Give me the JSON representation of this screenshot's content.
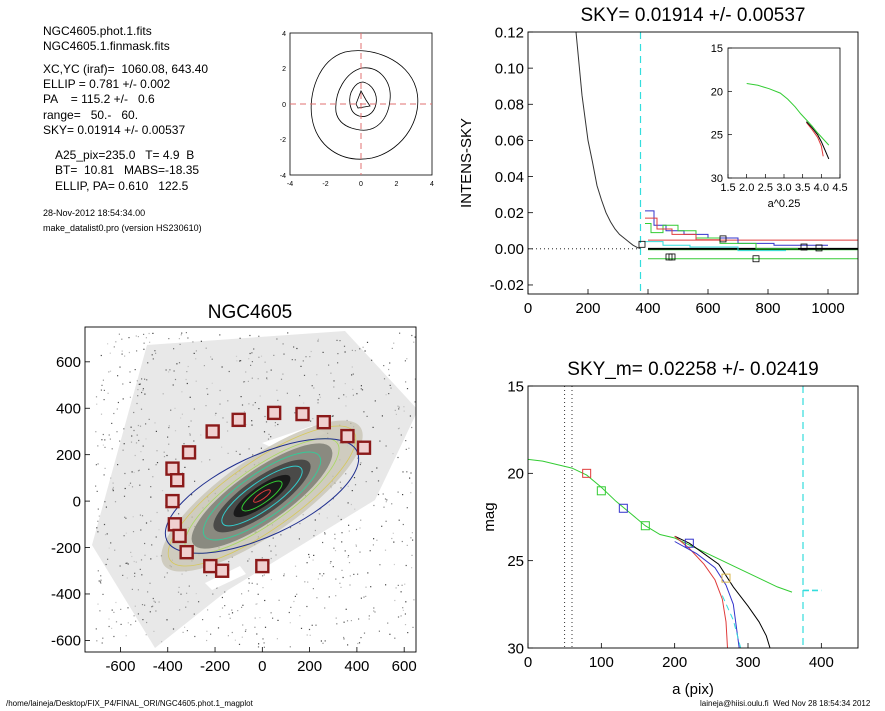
{
  "info": {
    "file_lines": [
      "NGC4605.phot.1.fits",
      "NGC4605.1.finmask.fits"
    ],
    "param_lines": [
      "XC,YC (iraf)=  1060.08, 643.40",
      "ELLIP = 0.781 +/- 0.002",
      "PA    = 115.2 +/-   0.6",
      "range=   50.-   60.",
      "SKY= 0.01914 +/- 0.00537"
    ],
    "extra_lines": [
      "A25_pix=235.0   T= 4.9  B",
      "BT=  10.81   MABS=-18.35",
      "ELLIP, PA= 0.610   122.5"
    ],
    "date_line": "28-Nov-2012 18:54:34.00",
    "prog_line": "make_datalist0.pro (version HS230610)"
  },
  "footer": {
    "left": "/home/laineja/Desktop/FIX_P4/FINAL_ORI/NGC4605.phot.1_magplot",
    "right": "laineja@hiisi.oulu.fi  Wed Nov 28 18:54:34 2012"
  },
  "colors": {
    "red": "#e03c3c",
    "green": "#33cc33",
    "blue": "#3333cc",
    "cyan": "#33dddd",
    "orange": "#d9b64a",
    "box": "#8b1a1a"
  },
  "chart_data": [
    {
      "id": "center-contour",
      "type": "contour",
      "xlim": [
        -4,
        4
      ],
      "ylim": [
        -4,
        4
      ],
      "xticks": [
        "-4",
        "-2",
        "0",
        "2",
        "4"
      ],
      "yticks": [
        "4",
        "2",
        "0",
        "-2",
        "-4"
      ],
      "crosshair": [
        0,
        0
      ]
    },
    {
      "id": "sky-plot",
      "type": "line",
      "title": "SKY= 0.01914 +/- 0.00537",
      "ylabel": "INTENS-SKY",
      "xlim": [
        0,
        1100
      ],
      "ylim": [
        -0.025,
        0.12
      ],
      "xticks": [
        "0",
        "200",
        "400",
        "600",
        "800",
        "1000"
      ],
      "yticks": [
        "0.12",
        "0.10",
        "0.08",
        "0.06",
        "0.04",
        "0.02",
        "0.00",
        "-0.02"
      ],
      "sky_radius": 375,
      "profile": {
        "x": [
          160,
          180,
          200,
          215,
          230,
          245,
          260,
          275,
          290,
          305,
          320,
          335,
          350,
          365,
          375
        ],
        "y": [
          0.12,
          0.085,
          0.06,
          0.048,
          0.035,
          0.027,
          0.02,
          0.015,
          0.011,
          0.008,
          0.006,
          0.004,
          0.002,
          0.0007,
          0.0002
        ]
      },
      "levels": [
        {
          "color": "red",
          "y": 0.0048
        },
        {
          "color": "green",
          "y": -0.0055
        },
        {
          "color": "green",
          "y": -0.0005
        },
        {
          "color": "black",
          "y": 0.0
        }
      ],
      "squares": {
        "x": [
          380,
          470,
          480,
          650,
          760,
          920,
          970
        ],
        "y": [
          0.0025,
          -0.0045,
          -0.0045,
          0.0055,
          -0.0055,
          0.001,
          0.0005
        ]
      },
      "inset": {
        "xlabel": "a^0.25",
        "xlim": [
          1.5,
          4.5
        ],
        "ylim": [
          15,
          30
        ],
        "xticks": [
          "1.5",
          "2.0",
          "2.5",
          "3.0",
          "3.5",
          "4.0",
          "4.5"
        ],
        "yticks": [
          "15",
          "20",
          "25",
          "30"
        ],
        "green": {
          "x": [
            2.0,
            2.3,
            2.6,
            2.9,
            3.1,
            3.3,
            3.45,
            3.6,
            3.75,
            3.9,
            4.05,
            4.2
          ],
          "y": [
            19.1,
            19.3,
            19.7,
            20.2,
            20.9,
            21.8,
            22.6,
            23.3,
            24.0,
            24.8,
            25.5,
            26.2
          ]
        },
        "red": {
          "x": [
            3.6,
            3.75,
            3.9,
            4.0,
            4.05
          ],
          "y": [
            23.6,
            24.4,
            25.3,
            26.3,
            27.5
          ]
        },
        "black": {
          "x": [
            3.6,
            3.75,
            3.9,
            4.0,
            4.1,
            4.2
          ],
          "y": [
            23.5,
            24.2,
            25.0,
            25.8,
            26.8,
            27.8
          ]
        }
      }
    },
    {
      "id": "image-panel",
      "type": "image",
      "title": "NGC4605",
      "xlim": [
        -750,
        650
      ],
      "ylim": [
        -650,
        750
      ],
      "xticks": [
        "-600",
        "-400",
        "-200",
        "0",
        "200",
        "400",
        "600"
      ],
      "yticks": [
        "600",
        "400",
        "200",
        "0",
        "-200",
        "-400",
        "-600"
      ],
      "masked_stars": {
        "x": [
          50,
          170,
          260,
          -100,
          360,
          430,
          -210,
          -310,
          -380,
          -360,
          -380,
          -370,
          -350,
          -320,
          -220,
          -170,
          0
        ],
        "y": [
          380,
          375,
          340,
          350,
          280,
          230,
          300,
          210,
          140,
          90,
          0,
          -100,
          -150,
          -220,
          -280,
          -300,
          -280
        ]
      }
    },
    {
      "id": "mag-plot",
      "type": "line",
      "title": "SKY_m=  0.02258 +/- 0.02419",
      "xlabel": "a (pix)",
      "ylabel": "mag",
      "xlim": [
        0,
        450
      ],
      "ylim": [
        30,
        15
      ],
      "xticks": [
        "0",
        "100",
        "200",
        "300",
        "400"
      ],
      "yticks": [
        "15",
        "20",
        "25",
        "30"
      ],
      "range_lines": [
        50,
        60
      ],
      "sky_radius": 375,
      "green": {
        "x": [
          0,
          20,
          40,
          60,
          80,
          100,
          120,
          140,
          160,
          180,
          200,
          220,
          240,
          260,
          280,
          300,
          320,
          340,
          360
        ],
        "y": [
          19.2,
          19.3,
          19.5,
          19.7,
          20.1,
          20.8,
          21.6,
          22.3,
          23.0,
          23.5,
          23.7,
          24.1,
          24.5,
          24.9,
          25.3,
          25.7,
          26.1,
          26.5,
          26.8
        ]
      },
      "red": {
        "x": [
          200,
          220,
          240,
          255,
          265,
          270,
          272
        ],
        "y": [
          23.6,
          24.3,
          25.2,
          26.1,
          27.2,
          28.5,
          30
        ]
      },
      "black": {
        "x": [
          200,
          220,
          240,
          260,
          280,
          300,
          315,
          325,
          330
        ],
        "y": [
          23.6,
          24.0,
          24.6,
          25.2,
          26.5,
          27.6,
          28.5,
          29.3,
          30
        ]
      },
      "cyan_end": {
        "x": [
          375,
          400
        ],
        "y": [
          26.7,
          26.7
        ]
      },
      "squares": {
        "x": [
          80,
          100,
          130,
          160,
          220,
          270
        ],
        "y": [
          20.0,
          21.0,
          22.0,
          23.0,
          24.0,
          26.0
        ],
        "colors": [
          "red",
          "green",
          "blue",
          "green",
          "blue",
          "orange"
        ]
      }
    }
  ]
}
